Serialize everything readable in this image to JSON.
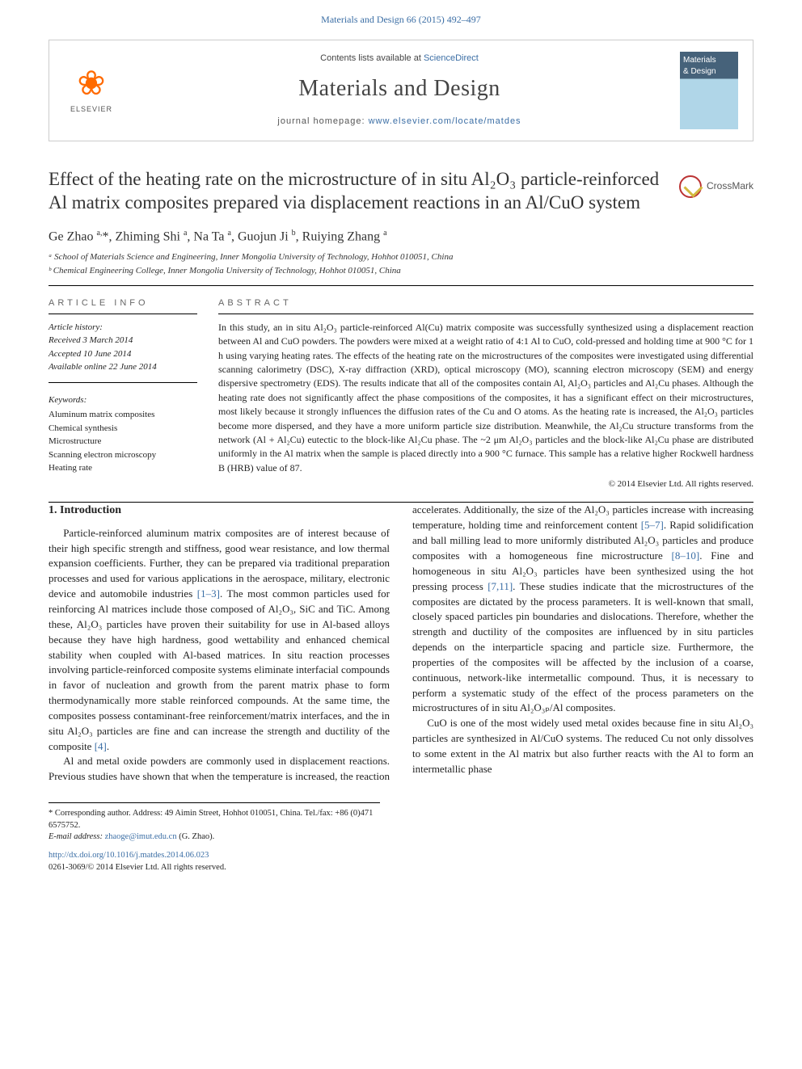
{
  "citation": {
    "journal_link": "Materials and Design 66 (2015) 492–497"
  },
  "banner": {
    "publisher": "ELSEVIER",
    "contents_prefix": "Contents lists available at ",
    "science_direct": "ScienceDirect",
    "journal_name": "Materials and Design",
    "homepage_prefix": "journal homepage: ",
    "homepage_url": "www.elsevier.com/locate/matdes",
    "cover_line1": "Materials",
    "cover_line2": "& Design"
  },
  "crossmark": "CrossMark",
  "title": "Effect of the heating rate on the microstructure of in situ Al₂O₃ particle-reinforced Al matrix composites prepared via displacement reactions in an Al/CuO system",
  "authors_html": "Ge Zhao <sup>a,</sup>*, Zhiming Shi <sup>a</sup>, Na Ta <sup>a</sup>, Guojun Ji <sup>b</sup>, Ruiying Zhang <sup>a</sup>",
  "affiliations": [
    "ᵃ School of Materials Science and Engineering, Inner Mongolia University of Technology, Hohhot 010051, China",
    "ᵇ Chemical Engineering College, Inner Mongolia University of Technology, Hohhot 010051, China"
  ],
  "article_info": {
    "head": "ARTICLE INFO",
    "history_head": "Article history:",
    "received": "Received 3 March 2014",
    "accepted": "Accepted 10 June 2014",
    "online": "Available online 22 June 2014",
    "keywords_head": "Keywords:",
    "keywords": [
      "Aluminum matrix composites",
      "Chemical synthesis",
      "Microstructure",
      "Scanning electron microscopy",
      "Heating rate"
    ]
  },
  "abstract": {
    "head": "ABSTRACT",
    "text": "In this study, an in situ Al₂O₃ particle-reinforced Al(Cu) matrix composite was successfully synthesized using a displacement reaction between Al and CuO powders. The powders were mixed at a weight ratio of 4:1 Al to CuO, cold-pressed and holding time at 900 °C for 1 h using varying heating rates. The effects of the heating rate on the microstructures of the composites were investigated using differential scanning calorimetry (DSC), X-ray diffraction (XRD), optical microscopy (MO), scanning electron microscopy (SEM) and energy dispersive spectrometry (EDS). The results indicate that all of the composites contain Al, Al₂O₃ particles and Al₂Cu phases. Although the heating rate does not significantly affect the phase compositions of the composites, it has a significant effect on their microstructures, most likely because it strongly influences the diffusion rates of the Cu and O atoms. As the heating rate is increased, the Al₂O₃ particles become more dispersed, and they have a more uniform particle size distribution. Meanwhile, the Al₂Cu structure transforms from the network (Al + Al₂Cu) eutectic to the block-like Al₂Cu phase. The ~2 μm Al₂O₃ particles and the block-like Al₂Cu phase are distributed uniformly in the Al matrix when the sample is placed directly into a 900 °C furnace. This sample has a relative higher Rockwell hardness B (HRB) value of 87.",
    "rights": "© 2014 Elsevier Ltd. All rights reserved."
  },
  "intro": {
    "heading": "1. Introduction",
    "p1": "Particle-reinforced aluminum matrix composites are of interest because of their high specific strength and stiffness, good wear resistance, and low thermal expansion coefficients. Further, they can be prepared via traditional preparation processes and used for various applications in the aerospace, military, electronic device and automobile industries [1–3]. The most common particles used for reinforcing Al matrices include those composed of Al₂O₃, SiC and TiC. Among these, Al₂O₃ particles have proven their suitability for use in Al-based alloys because they have high hardness, good wettability and enhanced chemical stability when coupled with Al-based matrices. In situ reaction processes involving particle-reinforced composite systems eliminate interfacial compounds in favor of nucleation and growth from the parent matrix phase to form thermodynamically more stable reinforced compounds. At the same time, the composites possess contaminant-free reinforcement/matrix interfaces, and the in situ Al₂O₃ particles are fine and can increase the strength and ductility of the composite [4].",
    "p2": "Al and metal oxide powders are commonly used in displacement reactions. Previous studies have shown that when the temperature is increased, the reaction accelerates. Additionally, the size of the Al₂O₃ particles increase with increasing temperature, holding time and reinforcement content [5–7]. Rapid solidification and ball milling lead to more uniformly distributed Al₂O₃ particles and produce composites with a homogeneous fine microstructure [8–10]. Fine and homogeneous in situ Al₂O₃ particles have been synthesized using the hot pressing process [7,11]. These studies indicate that the microstructures of the composites are dictated by the process parameters. It is well-known that small, closely spaced particles pin boundaries and dislocations. Therefore, whether the strength and ductility of the composites are influenced by in situ particles depends on the interparticle spacing and particle size. Furthermore, the properties of the composites will be affected by the inclusion of a coarse, continuous, network-like intermetallic compound. Thus, it is necessary to perform a systematic study of the effect of the process parameters on the microstructures of in situ Al₂O₃ₚ/Al composites.",
    "p3": "CuO is one of the most widely used metal oxides because fine in situ Al₂O₃ particles are synthesized in Al/CuO systems. The reduced Cu not only dissolves to some extent in the Al matrix but also further reacts with the Al to form an intermetallic phase"
  },
  "footnotes": {
    "corr": "* Corresponding author. Address: 49 Aimin Street, Hohhot 010051, China. Tel./fax: +86 (0)471 6575752.",
    "email_label": "E-mail address:",
    "email": "zhaoge@imut.edu.cn",
    "email_suffix": "(G. Zhao)."
  },
  "doi": {
    "url": "http://dx.doi.org/10.1016/j.matdes.2014.06.023",
    "issn": "0261-3069/© 2014 Elsevier Ltd. All rights reserved."
  },
  "colors": {
    "link": "#3b6ea5",
    "publisher_orange": "#ff6a00"
  }
}
